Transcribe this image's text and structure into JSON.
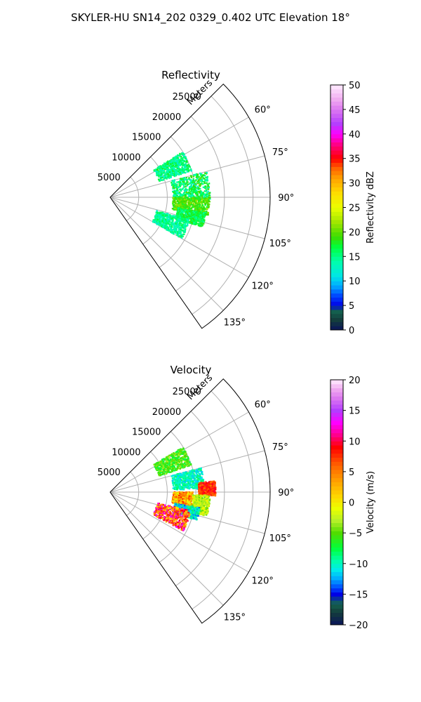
{
  "figure_title": "SKYLER-HU  SN14_202  0329_0.402 UTC Elevation 18°",
  "chart_data": [
    {
      "type": "polar_sector",
      "title": "Reflectivity",
      "radial_label": "Meters",
      "radial_ticks": [
        5000,
        10000,
        15000,
        20000,
        25000
      ],
      "radial_tick_labels": [
        "5000",
        "10000",
        "15000",
        "20000",
        "25000"
      ],
      "angle_range_deg": [
        45,
        145
      ],
      "angle_ticks": [
        60,
        75,
        90,
        105,
        120,
        135
      ],
      "angle_tick_labels": [
        "60°",
        "75°",
        "90°",
        "105°",
        "120°",
        "135°"
      ],
      "colorbar": {
        "label": "Reflectivity dBZ",
        "min": 0,
        "max": 50,
        "ticks": [
          0,
          5,
          10,
          15,
          20,
          25,
          30,
          35,
          40,
          45,
          50
        ],
        "tick_labels": [
          "0",
          "5",
          "10",
          "15",
          "20",
          "25",
          "30",
          "35",
          "40",
          "45",
          "50"
        ]
      },
      "echo_regions": [
        {
          "az": [
            58,
            72
          ],
          "range": [
            9000,
            15000
          ],
          "value": [
            12,
            18
          ]
        },
        {
          "az": [
            75,
            92
          ],
          "range": [
            11000,
            17500
          ],
          "value": [
            12,
            20
          ]
        },
        {
          "az": [
            90,
            101
          ],
          "range": [
            11000,
            17500
          ],
          "value": [
            17,
            22
          ]
        },
        {
          "az": [
            99,
            108
          ],
          "range": [
            12000,
            17000
          ],
          "value": [
            14,
            19
          ]
        },
        {
          "az": [
            106,
            120
          ],
          "range": [
            8500,
            14500
          ],
          "value": [
            12,
            17
          ]
        }
      ]
    },
    {
      "type": "polar_sector",
      "title": "Velocity",
      "radial_label": "Meters",
      "radial_ticks": [
        5000,
        10000,
        15000,
        20000,
        25000
      ],
      "radial_tick_labels": [
        "5000",
        "10000",
        "15000",
        "20000",
        "25000"
      ],
      "angle_range_deg": [
        45,
        145
      ],
      "angle_ticks": [
        60,
        75,
        90,
        105,
        120,
        135
      ],
      "angle_tick_labels": [
        "60°",
        "75°",
        "90°",
        "105°",
        "120°",
        "135°"
      ],
      "colorbar": {
        "label": "Velocity (m/s)",
        "min": -20,
        "max": 20,
        "ticks": [
          -20,
          -15,
          -10,
          -5,
          0,
          5,
          10,
          15,
          20
        ],
        "tick_labels": [
          "−20",
          "−15",
          "−10",
          "−5",
          "0",
          "5",
          "10",
          "15",
          "20"
        ]
      },
      "echo_regions": [
        {
          "az": [
            58,
            72
          ],
          "range": [
            9000,
            15000
          ],
          "value": [
            -8,
            -3
          ]
        },
        {
          "az": [
            75,
            88
          ],
          "range": [
            11000,
            16500
          ],
          "value": [
            -12,
            -8
          ]
        },
        {
          "az": [
            84,
            92
          ],
          "range": [
            15500,
            18500
          ],
          "value": [
            5,
            10
          ]
        },
        {
          "az": [
            90,
            100
          ],
          "range": [
            11000,
            14500
          ],
          "value": [
            -2,
            8
          ]
        },
        {
          "az": [
            92,
            104
          ],
          "range": [
            14500,
            17500
          ],
          "value": [
            -5,
            0
          ]
        },
        {
          "az": [
            100,
            108
          ],
          "range": [
            11500,
            16000
          ],
          "value": [
            -14,
            -8
          ]
        },
        {
          "az": [
            103,
            118
          ],
          "range": [
            8500,
            14500
          ],
          "value": [
            0,
            14
          ]
        }
      ]
    }
  ]
}
